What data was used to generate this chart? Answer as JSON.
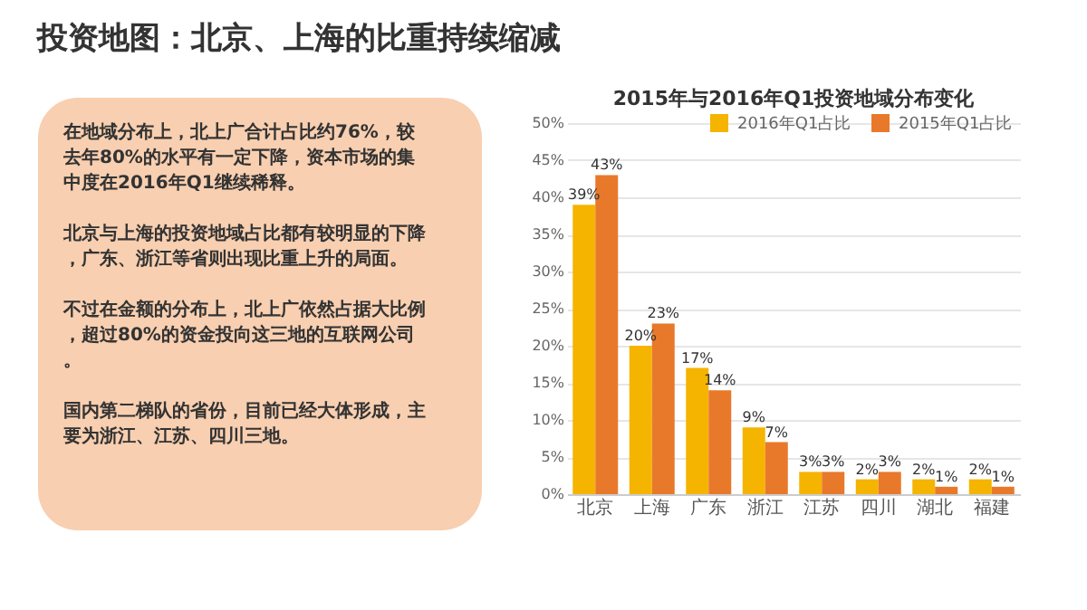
{
  "chart_data": {
    "type": "bar",
    "title": "投资地图：北京、上海的比重持续缩减",
    "subtitle": "2015年与2016年Q1投资地域分布变化",
    "categories": [
      "北京",
      "上海",
      "广东",
      "浙江",
      "江苏",
      "四川",
      "湖北",
      "福建"
    ],
    "series": [
      {
        "name": "2016年Q1占比",
        "color": "#f5b400",
        "values": [
          39,
          20,
          17,
          9,
          3,
          2,
          2,
          2
        ],
        "value_labels": [
          "39%",
          "20%",
          "17%",
          "9%",
          "3%",
          "2%",
          "2%",
          "2%"
        ]
      },
      {
        "name": "2015年Q1占比",
        "color": "#e8792a",
        "values": [
          43,
          23,
          14,
          7,
          3,
          3,
          1,
          1
        ],
        "value_labels": [
          "43%",
          "23%",
          "14%",
          "7%",
          "3%",
          "3%",
          "1%",
          "1%"
        ]
      }
    ],
    "ylim": [
      0,
      50
    ],
    "yticks": [
      {
        "value": 0,
        "label": "0%"
      },
      {
        "value": 5,
        "label": "5%"
      },
      {
        "value": 10,
        "label": "10%"
      },
      {
        "value": 15,
        "label": "15%"
      },
      {
        "value": 20,
        "label": "20%"
      },
      {
        "value": 25,
        "label": "25%"
      },
      {
        "value": 30,
        "label": "30%"
      },
      {
        "value": 35,
        "label": "35%"
      },
      {
        "value": 40,
        "label": "40%"
      },
      {
        "value": 45,
        "label": "45%"
      },
      {
        "value": 50,
        "label": "50%"
      }
    ],
    "grid": "y",
    "legend": "top",
    "annotations": [
      "在地域分布上，北上广合计占比约76%，较去年80%的水平有一定下降，资本市场的集中度在2016年Q1继续稀释。",
      "北京与上海的投资地域占比都有较明显的下降，广东、浙江等省则出现比重上升的局面。",
      "不过在金额的分布上，北上广依然占据大比例，超过80%的资金投向这三地的互联网公司。",
      "国内第二梯队的省份，目前已经大体形成，主要为浙江、江苏、四川三地。"
    ]
  }
}
